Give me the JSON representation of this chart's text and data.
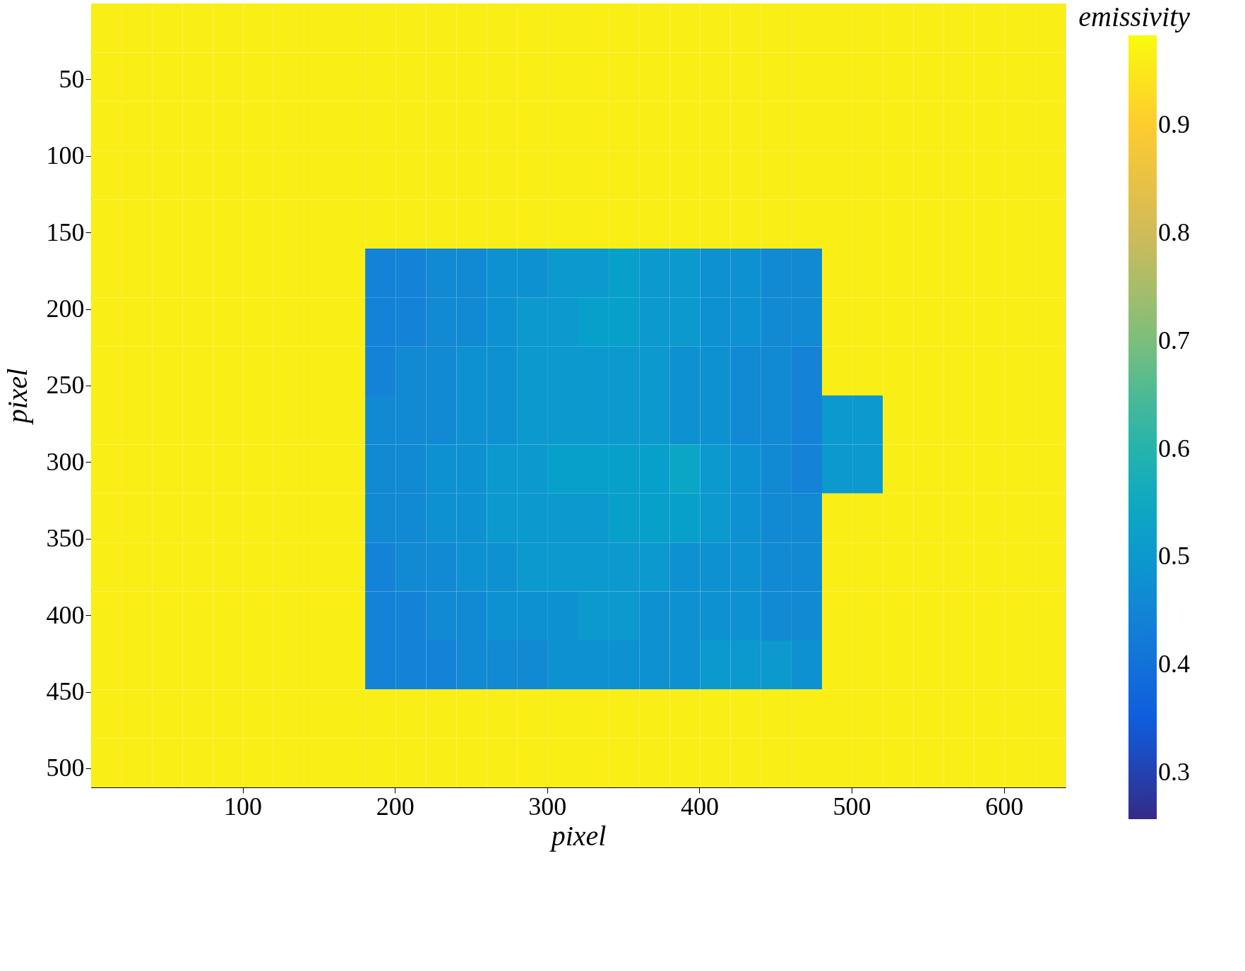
{
  "chart_data": {
    "type": "heatmap",
    "xlabel": "pixel",
    "ylabel": "pixel",
    "clabel": "emissivity",
    "x": [
      10.5,
      30.5,
      50.5,
      70.5,
      90.5,
      110.5,
      130.5,
      150.5,
      170.5,
      190.5,
      210.5,
      230.5,
      250.5,
      270.5,
      290.5,
      310.5,
      330.5,
      350.5,
      370.5,
      390.5,
      410.5,
      430.5,
      450.5,
      470.5,
      490.5,
      510.5,
      530.5,
      550.5,
      570.5,
      590.5,
      610.5,
      630.5
    ],
    "xlim": [
      0.5,
      640.5
    ],
    "ylim": [
      512.5,
      0.5
    ],
    "xticks": [
      100,
      200,
      300,
      400,
      500,
      600
    ],
    "yticks": [
      50,
      100,
      150,
      200,
      250,
      300,
      350,
      400,
      450,
      500
    ],
    "clim": [
      0.257,
      0.983
    ],
    "cticks": [
      0.3,
      0.4,
      0.5,
      0.6,
      0.7,
      0.8,
      0.9
    ],
    "grid": false,
    "cells": [
      [
        0.96,
        0.96,
        0.96,
        0.96,
        0.96,
        0.96,
        0.96,
        0.96,
        0.96,
        0.96,
        0.96,
        0.96,
        0.96,
        0.96,
        0.96,
        0.96,
        0.96,
        0.96,
        0.96,
        0.96,
        0.96,
        0.96,
        0.96,
        0.96,
        0.96,
        0.96,
        0.96,
        0.96,
        0.96,
        0.96,
        0.96,
        0.96
      ],
      [
        0.96,
        0.96,
        0.96,
        0.96,
        0.96,
        0.96,
        0.96,
        0.96,
        0.96,
        0.96,
        0.96,
        0.96,
        0.96,
        0.96,
        0.96,
        0.96,
        0.96,
        0.96,
        0.96,
        0.96,
        0.96,
        0.96,
        0.96,
        0.96,
        0.96,
        0.96,
        0.96,
        0.96,
        0.96,
        0.96,
        0.96,
        0.96
      ],
      [
        0.96,
        0.96,
        0.96,
        0.96,
        0.96,
        0.96,
        0.96,
        0.96,
        0.96,
        0.96,
        0.96,
        0.96,
        0.96,
        0.96,
        0.96,
        0.96,
        0.96,
        0.96,
        0.96,
        0.96,
        0.96,
        0.96,
        0.96,
        0.96,
        0.96,
        0.96,
        0.96,
        0.96,
        0.96,
        0.96,
        0.96,
        0.96
      ],
      [
        0.96,
        0.96,
        0.96,
        0.96,
        0.96,
        0.96,
        0.96,
        0.96,
        0.96,
        0.96,
        0.96,
        0.96,
        0.96,
        0.96,
        0.96,
        0.96,
        0.96,
        0.96,
        0.96,
        0.96,
        0.96,
        0.96,
        0.96,
        0.96,
        0.96,
        0.96,
        0.96,
        0.96,
        0.96,
        0.96,
        0.96,
        0.96
      ],
      [
        0.96,
        0.96,
        0.96,
        0.96,
        0.96,
        0.96,
        0.96,
        0.96,
        0.96,
        0.96,
        0.96,
        0.96,
        0.96,
        0.96,
        0.96,
        0.96,
        0.96,
        0.96,
        0.96,
        0.96,
        0.96,
        0.96,
        0.96,
        0.96,
        0.96,
        0.96,
        0.96,
        0.96,
        0.96,
        0.96,
        0.96,
        0.96
      ],
      [
        0.96,
        0.96,
        0.96,
        0.96,
        0.96,
        0.96,
        0.96,
        0.96,
        0.96,
        0.44,
        0.44,
        0.46,
        0.46,
        0.48,
        0.48,
        0.5,
        0.5,
        0.52,
        0.5,
        0.5,
        0.48,
        0.48,
        0.46,
        0.46,
        0.96,
        0.96,
        0.96,
        0.96,
        0.96,
        0.96,
        0.96,
        0.96
      ],
      [
        0.96,
        0.96,
        0.96,
        0.96,
        0.96,
        0.96,
        0.96,
        0.96,
        0.96,
        0.44,
        0.44,
        0.46,
        0.46,
        0.48,
        0.5,
        0.5,
        0.52,
        0.52,
        0.5,
        0.5,
        0.48,
        0.48,
        0.46,
        0.46,
        0.96,
        0.96,
        0.96,
        0.96,
        0.96,
        0.96,
        0.96,
        0.96
      ],
      [
        0.96,
        0.96,
        0.96,
        0.96,
        0.96,
        0.96,
        0.96,
        0.96,
        0.96,
        0.44,
        0.46,
        0.46,
        0.48,
        0.48,
        0.5,
        0.5,
        0.5,
        0.5,
        0.5,
        0.48,
        0.48,
        0.46,
        0.46,
        0.44,
        0.96,
        0.96,
        0.96,
        0.96,
        0.96,
        0.96,
        0.96,
        0.96
      ],
      [
        0.96,
        0.96,
        0.96,
        0.96,
        0.96,
        0.96,
        0.96,
        0.96,
        0.96,
        0.46,
        0.46,
        0.46,
        0.48,
        0.48,
        0.5,
        0.5,
        0.5,
        0.5,
        0.5,
        0.48,
        0.48,
        0.46,
        0.46,
        0.44,
        0.5,
        0.5,
        0.96,
        0.96,
        0.96,
        0.96,
        0.96,
        0.96
      ],
      [
        0.96,
        0.96,
        0.96,
        0.96,
        0.96,
        0.96,
        0.96,
        0.96,
        0.96,
        0.46,
        0.46,
        0.48,
        0.48,
        0.5,
        0.5,
        0.52,
        0.52,
        0.52,
        0.52,
        0.54,
        0.5,
        0.48,
        0.46,
        0.44,
        0.5,
        0.5,
        0.96,
        0.96,
        0.96,
        0.96,
        0.96,
        0.96
      ],
      [
        0.96,
        0.96,
        0.96,
        0.96,
        0.96,
        0.96,
        0.96,
        0.96,
        0.96,
        0.46,
        0.46,
        0.48,
        0.48,
        0.5,
        0.5,
        0.5,
        0.5,
        0.52,
        0.52,
        0.52,
        0.5,
        0.48,
        0.46,
        0.46,
        0.96,
        0.96,
        0.96,
        0.96,
        0.96,
        0.96,
        0.96,
        0.96
      ],
      [
        0.96,
        0.96,
        0.96,
        0.96,
        0.96,
        0.96,
        0.96,
        0.96,
        0.96,
        0.44,
        0.46,
        0.46,
        0.48,
        0.48,
        0.5,
        0.5,
        0.5,
        0.5,
        0.5,
        0.48,
        0.48,
        0.48,
        0.46,
        0.46,
        0.96,
        0.96,
        0.96,
        0.96,
        0.96,
        0.96,
        0.96,
        0.96
      ],
      [
        0.96,
        0.96,
        0.96,
        0.96,
        0.96,
        0.96,
        0.96,
        0.96,
        0.96,
        0.44,
        0.44,
        0.46,
        0.46,
        0.48,
        0.48,
        0.48,
        0.5,
        0.5,
        0.48,
        0.48,
        0.48,
        0.48,
        0.46,
        0.46,
        0.96,
        0.96,
        0.96,
        0.96,
        0.96,
        0.96,
        0.96,
        0.96
      ],
      [
        0.96,
        0.96,
        0.96,
        0.96,
        0.96,
        0.96,
        0.96,
        0.96,
        0.96,
        0.44,
        0.44,
        0.44,
        0.46,
        0.46,
        0.46,
        0.48,
        0.48,
        0.48,
        0.48,
        0.48,
        0.5,
        0.5,
        0.5,
        0.48,
        0.96,
        0.96,
        0.96,
        0.96,
        0.96,
        0.96,
        0.96,
        0.96
      ],
      [
        0.96,
        0.96,
        0.96,
        0.96,
        0.96,
        0.96,
        0.96,
        0.96,
        0.96,
        0.96,
        0.96,
        0.96,
        0.96,
        0.96,
        0.96,
        0.96,
        0.96,
        0.96,
        0.96,
        0.96,
        0.96,
        0.96,
        0.96,
        0.96,
        0.96,
        0.96,
        0.96,
        0.96,
        0.96,
        0.96,
        0.96,
        0.96
      ],
      [
        0.96,
        0.96,
        0.96,
        0.96,
        0.96,
        0.96,
        0.96,
        0.96,
        0.96,
        0.96,
        0.96,
        0.96,
        0.96,
        0.96,
        0.96,
        0.96,
        0.96,
        0.96,
        0.96,
        0.96,
        0.96,
        0.96,
        0.96,
        0.96,
        0.96,
        0.96,
        0.96,
        0.96,
        0.96,
        0.96,
        0.96,
        0.96
      ]
    ]
  }
}
